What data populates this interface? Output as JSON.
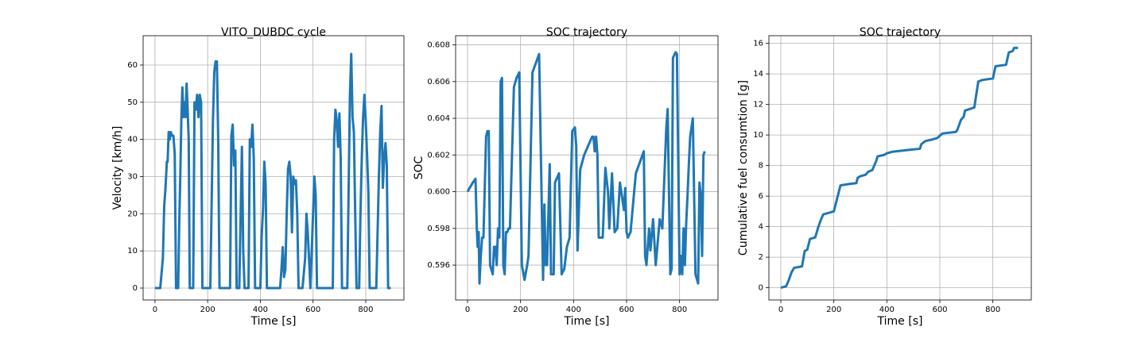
{
  "chart_data": [
    {
      "type": "line",
      "title": "VITO_DUBDC cycle",
      "xlabel": "Time [s]",
      "ylabel": "Velocity [km/h]",
      "color": "#1f77b4",
      "grid": true,
      "xlim": [
        -45,
        945
      ],
      "ylim": [
        -3.2,
        67.9
      ],
      "xticks": [
        0,
        200,
        400,
        600,
        800
      ],
      "yticks": [
        0,
        10,
        20,
        30,
        40,
        50,
        60
      ],
      "x": [
        0,
        20,
        30,
        35,
        40,
        45,
        48,
        52,
        56,
        60,
        65,
        70,
        75,
        80,
        88,
        92,
        96,
        100,
        104,
        108,
        112,
        116,
        120,
        124,
        128,
        132,
        145,
        150,
        155,
        160,
        165,
        170,
        175,
        180,
        200,
        210,
        220,
        225,
        230,
        235,
        240,
        245,
        270,
        285,
        290,
        295,
        300,
        305,
        310,
        320,
        330,
        335,
        340,
        355,
        360,
        365,
        370,
        375,
        380,
        400,
        405,
        410,
        415,
        420,
        425,
        475,
        480,
        485,
        490,
        495,
        500,
        505,
        510,
        515,
        520,
        525,
        530,
        535,
        540,
        545,
        560,
        570,
        575,
        580,
        590,
        600,
        605,
        610,
        615,
        640,
        665,
        675,
        680,
        685,
        690,
        695,
        700,
        705,
        710,
        730,
        740,
        745,
        750,
        755,
        760,
        765,
        775,
        780,
        785,
        790,
        795,
        800,
        805,
        810,
        815,
        835,
        840,
        850,
        855,
        860,
        865,
        870,
        875,
        880,
        885,
        895
      ],
      "values": [
        0,
        0,
        8,
        22,
        27,
        34,
        34,
        42,
        40,
        42,
        41,
        41,
        36,
        0,
        0,
        17,
        30,
        45,
        54,
        46,
        50,
        46,
        55,
        48,
        40,
        0,
        0,
        50,
        48,
        52,
        46,
        52,
        50,
        0,
        0,
        0,
        45,
        58,
        61,
        61,
        40,
        0,
        0,
        0,
        41,
        44,
        33,
        37,
        0,
        0,
        38,
        10,
        0,
        0,
        40,
        38,
        44,
        35,
        0,
        0,
        14,
        21,
        34,
        28,
        0,
        0,
        5,
        11,
        3,
        5,
        20,
        32,
        34,
        30,
        15,
        30,
        28,
        29,
        20,
        0,
        0,
        8,
        20,
        15,
        0,
        20,
        30,
        25,
        0,
        0,
        0,
        0,
        40,
        48,
        45,
        38,
        47,
        35,
        0,
        0,
        52,
        63,
        46,
        42,
        20,
        0,
        0,
        20,
        35,
        46,
        52,
        45,
        36,
        26,
        0,
        0,
        0,
        30,
        42,
        49,
        27,
        35,
        39,
        33,
        0,
        0
      ]
    },
    {
      "type": "line",
      "title": "SOC trajectory",
      "xlabel": "Time [s]",
      "ylabel": "SOC",
      "color": "#1f77b4",
      "grid": true,
      "xlim": [
        -45,
        945
      ],
      "ylim": [
        0.5941,
        0.6085
      ],
      "xticks": [
        0,
        200,
        400,
        600,
        800
      ],
      "yticks": [
        0.596,
        0.598,
        {
          "value": 0.6,
          "label": "0.600"
        },
        0.602,
        0.604,
        0.606,
        0.608
      ],
      "x": [
        0,
        20,
        30,
        35,
        38,
        42,
        45,
        50,
        55,
        60,
        70,
        75,
        80,
        85,
        95,
        100,
        105,
        110,
        115,
        120,
        125,
        130,
        135,
        140,
        145,
        150,
        155,
        160,
        175,
        185,
        195,
        205,
        215,
        225,
        230,
        245,
        270,
        285,
        290,
        295,
        300,
        310,
        315,
        325,
        330,
        345,
        355,
        365,
        375,
        385,
        395,
        405,
        410,
        415,
        425,
        440,
        470,
        475,
        480,
        485,
        490,
        495,
        510,
        520,
        530,
        535,
        545,
        555,
        565,
        575,
        590,
        595,
        600,
        605,
        615,
        635,
        665,
        670,
        675,
        685,
        690,
        700,
        710,
        725,
        735,
        750,
        755,
        765,
        770,
        775,
        785,
        790,
        800,
        805,
        810,
        815,
        820,
        825,
        830,
        835,
        840,
        850,
        860,
        870,
        875,
        880,
        885,
        890,
        895
      ],
      "values": [
        0.6,
        0.6005,
        0.6007,
        0.598,
        0.597,
        0.5978,
        0.595,
        0.5965,
        0.5975,
        0.5975,
        0.603,
        0.6033,
        0.6033,
        0.596,
        0.5955,
        0.597,
        0.597,
        0.596,
        0.598,
        0.5975,
        0.606,
        0.6062,
        0.596,
        0.5955,
        0.5978,
        0.5978,
        0.598,
        0.598,
        0.6057,
        0.6062,
        0.6065,
        0.596,
        0.5952,
        0.596,
        0.5965,
        0.6065,
        0.6075,
        0.5952,
        0.5993,
        0.596,
        0.596,
        0.6015,
        0.5955,
        0.5955,
        0.6005,
        0.601,
        0.5955,
        0.5958,
        0.597,
        0.5975,
        0.6033,
        0.6035,
        0.6025,
        0.5968,
        0.6012,
        0.602,
        0.603,
        0.603,
        0.6022,
        0.603,
        0.602,
        0.5975,
        0.5975,
        0.6013,
        0.6,
        0.598,
        0.601,
        0.5978,
        0.598,
        0.6005,
        0.599,
        0.6002,
        0.5978,
        0.5975,
        0.5978,
        0.601,
        0.6022,
        0.5965,
        0.596,
        0.598,
        0.5968,
        0.5985,
        0.596,
        0.5985,
        0.598,
        0.6035,
        0.6045,
        0.5955,
        0.5958,
        0.6073,
        0.6076,
        0.6075,
        0.5955,
        0.5965,
        0.5955,
        0.598,
        0.596,
        0.5983,
        0.5998,
        0.6015,
        0.603,
        0.604,
        0.5955,
        0.595,
        0.6005,
        0.5998,
        0.5965,
        0.602,
        0.6022
      ]
    },
    {
      "type": "line",
      "title": "SOC trajectory",
      "xlabel": "Time [s]",
      "ylabel": "Cumulative fuel consumtion [g]",
      "color": "#1f77b4",
      "grid": true,
      "xlim": [
        -45,
        945
      ],
      "ylim": [
        -0.8,
        16.5
      ],
      "xticks": [
        0,
        200,
        400,
        600,
        800
      ],
      "yticks": [
        0,
        2,
        4,
        6,
        8,
        10,
        12,
        14,
        16
      ],
      "x": [
        0,
        20,
        30,
        40,
        50,
        65,
        80,
        90,
        100,
        110,
        130,
        140,
        150,
        160,
        180,
        200,
        225,
        260,
        285,
        290,
        300,
        320,
        330,
        345,
        355,
        360,
        365,
        390,
        400,
        420,
        470,
        525,
        530,
        545,
        570,
        590,
        610,
        660,
        665,
        680,
        690,
        695,
        730,
        745,
        760,
        800,
        810,
        850,
        855,
        860,
        875,
        880,
        895
      ],
      "values": [
        0,
        0.1,
        0.5,
        1.0,
        1.3,
        1.35,
        1.4,
        2.4,
        2.5,
        3.2,
        3.3,
        3.9,
        4.4,
        4.8,
        4.9,
        5.0,
        6.7,
        6.8,
        6.85,
        7.2,
        7.3,
        7.4,
        7.6,
        7.7,
        8.1,
        8.3,
        8.6,
        8.7,
        8.8,
        8.9,
        9.0,
        9.1,
        9.4,
        9.6,
        9.7,
        9.8,
        10.1,
        10.2,
        10.3,
        11.0,
        11.2,
        11.6,
        11.8,
        13.5,
        13.6,
        13.7,
        14.5,
        14.6,
        15.0,
        15.4,
        15.5,
        15.7,
        15.7
      ]
    }
  ]
}
